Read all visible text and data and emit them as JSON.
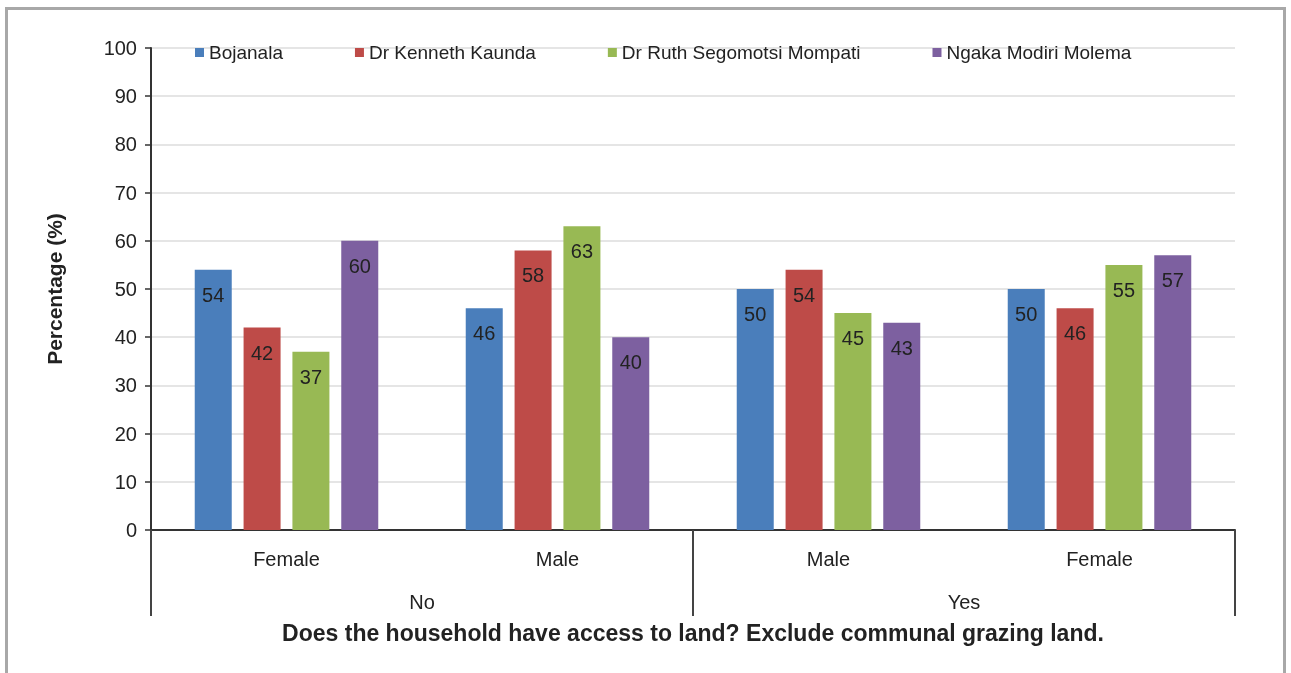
{
  "chart_data": {
    "type": "bar",
    "categories": [
      "Female",
      "Male",
      "Male",
      "Female"
    ],
    "series": [
      {
        "name": "Bojanala",
        "color": "#4a7ebb",
        "values": [
          54,
          46,
          50,
          50
        ]
      },
      {
        "name": "Dr Kenneth Kaunda",
        "color": "#be4b48",
        "values": [
          42,
          58,
          54,
          46
        ]
      },
      {
        "name": "Dr Ruth Segomotsi Mompati",
        "color": "#98b954",
        "values": [
          37,
          63,
          45,
          55
        ]
      },
      {
        "name": "Ngaka Modiri Molema",
        "color": "#7d60a0",
        "values": [
          60,
          40,
          43,
          57
        ]
      }
    ],
    "ylabel": "Percentage (%)",
    "xlabel": "Does the household have access to land? Exclude communal grazing land.",
    "annotations": [
      "No",
      "Yes"
    ],
    "ylim": [
      0,
      100
    ],
    "yticks": [
      0,
      10,
      20,
      30,
      40,
      50,
      60,
      70,
      80,
      90,
      100
    ],
    "data_labels": true,
    "grid": "y",
    "legend": "top"
  }
}
